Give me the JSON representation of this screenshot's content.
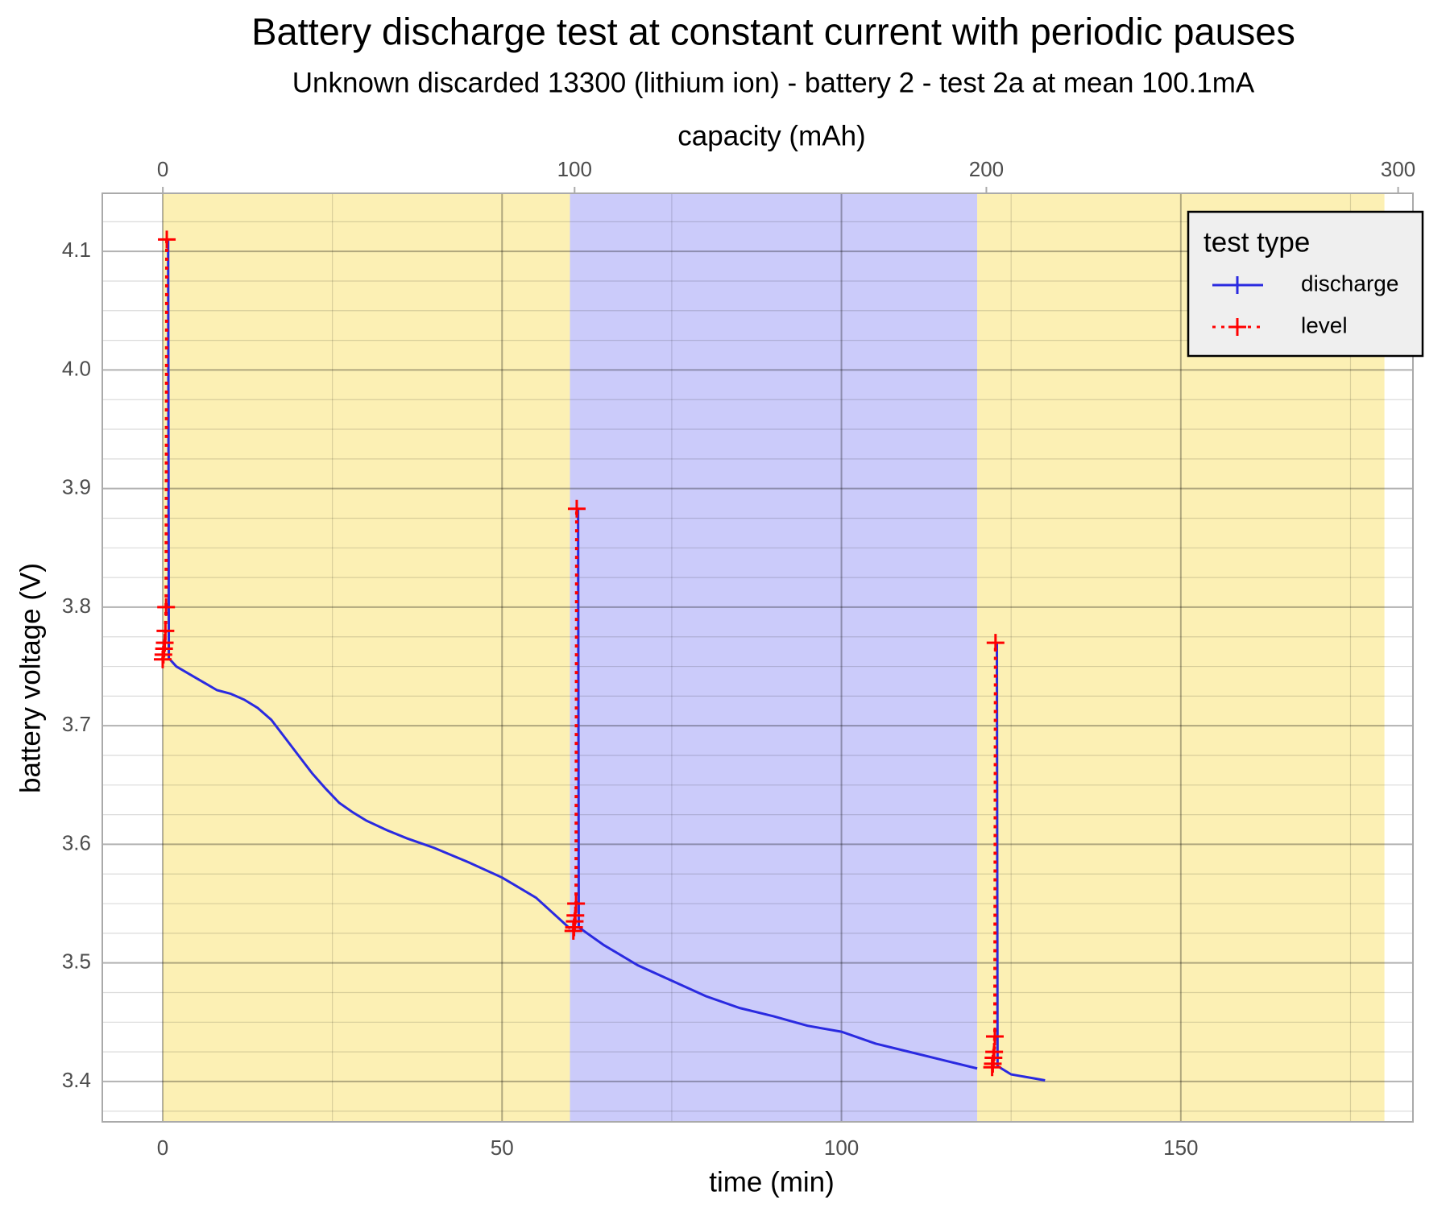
{
  "chart_data": {
    "type": "line",
    "title": "Battery discharge test at constant current with periodic pauses",
    "subtitle": "Unknown discarded 13300 (lithium ion) - battery 2 - test 2a at mean 100.1mA",
    "x_label": "time (min)",
    "x2_label": "capacity (mAh)",
    "y_label": "battery voltage (V)",
    "xlim": [
      -8.9,
      184.2
    ],
    "xticks": [
      0,
      50,
      100,
      150
    ],
    "xminor": [
      25,
      75,
      125,
      175
    ],
    "x2lim": [
      -14.7,
      303.6
    ],
    "x2ticks": [
      0,
      100,
      200,
      300
    ],
    "ylim": [
      3.366,
      4.149
    ],
    "yticks": [
      3.4,
      3.5,
      3.6,
      3.7,
      3.8,
      3.9,
      {
        "value": 4,
        "label": "4.0"
      },
      4.1
    ],
    "yminor": [
      3.375,
      3.425,
      3.45,
      3.475,
      3.525,
      3.55,
      3.575,
      3.625,
      3.65,
      3.675,
      3.725,
      3.75,
      3.775,
      3.825,
      3.85,
      3.875,
      3.925,
      3.95,
      3.975,
      4.025,
      4.05,
      4.075,
      4.125
    ],
    "grid": true,
    "bands": [
      {
        "start": 0,
        "end": 60,
        "color": "#fcf0b4"
      },
      {
        "start": 60,
        "end": 120,
        "color": "#cbcbfa"
      },
      {
        "start": 120,
        "end": 180,
        "color": "#fcf0b4"
      }
    ],
    "legend_title": "test type",
    "legend_position": "top-right",
    "series": [
      {
        "name": "discharge",
        "color": "#2a2ae0",
        "x": [
          0.8,
          0.9,
          2,
          5,
          8,
          10,
          12,
          14,
          16,
          18,
          20,
          22,
          24,
          26,
          28,
          30,
          33,
          36,
          40,
          45,
          50,
          55,
          60,
          null,
          61.2,
          61.3,
          65,
          70,
          75,
          80,
          85,
          90,
          95,
          100,
          105,
          110,
          115,
          120,
          null,
          122.9,
          123,
          125,
          128,
          130
        ],
        "values": [
          4.11,
          3.757,
          3.75,
          3.74,
          3.73,
          3.727,
          3.722,
          3.715,
          3.705,
          3.69,
          3.675,
          3.66,
          3.647,
          3.635,
          3.627,
          3.62,
          3.612,
          3.605,
          3.597,
          3.585,
          3.572,
          3.555,
          3.529,
          null,
          3.883,
          3.53,
          3.515,
          3.498,
          3.485,
          3.472,
          3.462,
          3.455,
          3.447,
          3.442,
          3.432,
          3.425,
          3.418,
          3.411,
          null,
          3.77,
          3.413,
          3.406,
          3.403,
          3.401
        ]
      },
      {
        "name": "level",
        "color": "#ff0000",
        "x": [
          0,
          0.1,
          0.2,
          0.3,
          0.4,
          0.5,
          0.6,
          null,
          60.5,
          60.6,
          60.7,
          60.8,
          60.9,
          61,
          null,
          122.2,
          122.3,
          122.4,
          122.5,
          122.6,
          122.7
        ],
        "values": [
          3.756,
          3.76,
          3.765,
          3.77,
          3.78,
          3.8,
          4.11,
          null,
          3.527,
          3.53,
          3.535,
          3.54,
          3.55,
          3.883,
          null,
          3.412,
          3.415,
          3.42,
          3.425,
          3.438,
          3.77
        ]
      }
    ]
  }
}
